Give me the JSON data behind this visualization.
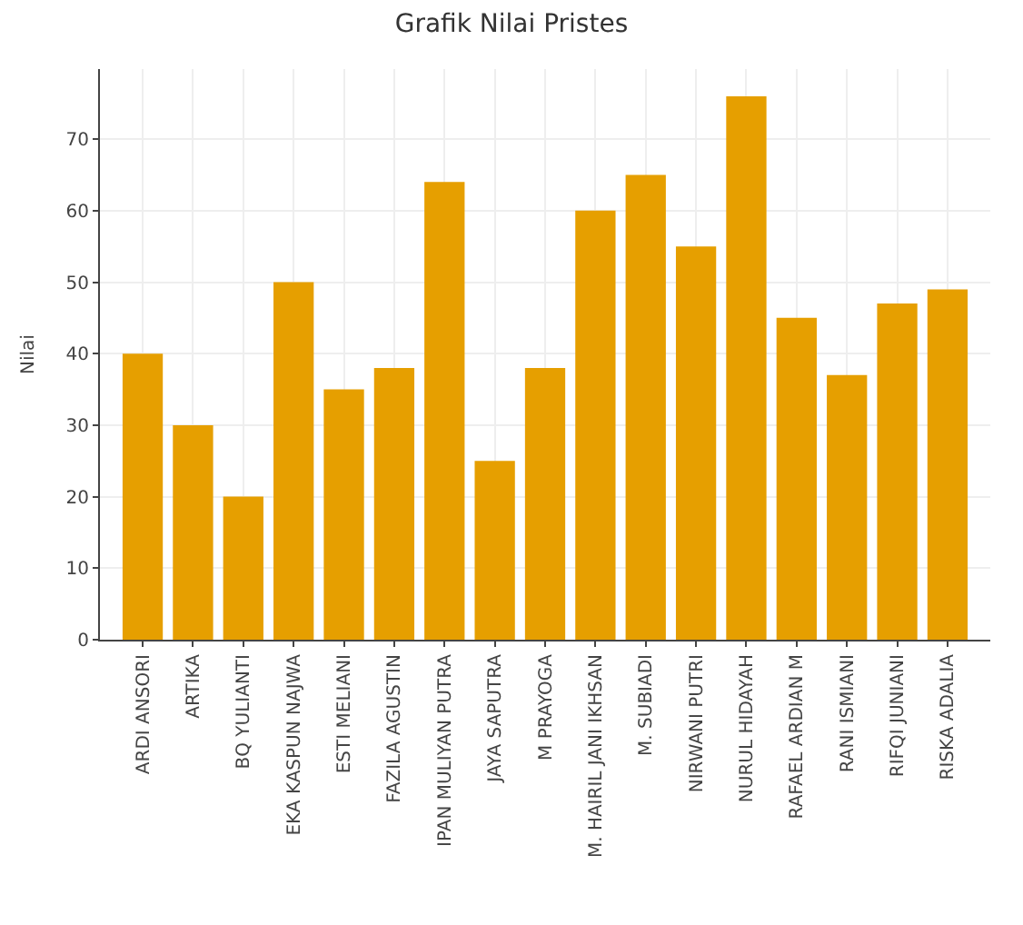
{
  "chart_data": {
    "type": "bar",
    "title": "Grafik Nilai Pristes",
    "ylabel": "Nilai",
    "categories": [
      "ARDI ANSORI",
      "ARTIKA",
      "BQ YULIANTI",
      "EKA KASPUN NAJWA",
      "ESTI MELIANI",
      "FAZILA AGUSTIN",
      "IPAN MULIYAN PUTRA",
      "JAYA SAPUTRA",
      "M PRAYOGA",
      "M. HAIRIL JANI IKHSAN",
      "M. SUBIADI",
      "NIRWANI PUTRI",
      "NURUL HIDAYAH",
      "RAFAEL ARDIAN M",
      "RANI ISMIANI",
      "RIFQI JUNIANI",
      "RISKA ADALIA"
    ],
    "values": [
      40,
      30,
      20,
      50,
      35,
      38,
      64,
      25,
      38,
      60,
      65,
      55,
      76,
      45,
      37,
      47,
      49
    ],
    "color": "#e69f00",
    "ylim": [
      0,
      79.8
    ],
    "yticks": [
      0,
      10,
      20,
      30,
      40,
      50,
      60,
      70
    ],
    "grid": true
  }
}
